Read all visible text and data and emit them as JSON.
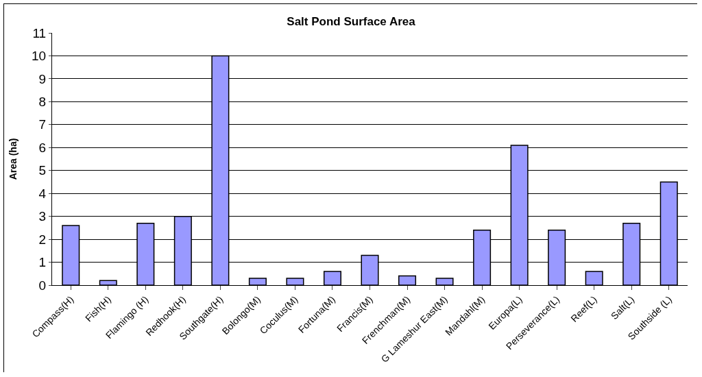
{
  "chart_data": {
    "type": "bar",
    "title": "Salt Pond Surface Area",
    "ylabel": "Area (ha)",
    "categories": [
      "Compass(H)",
      "Fish(H)",
      "Flamingo (H)",
      "Redhook(H)",
      "Southgate(H)",
      "Bolongo(M)",
      "Coculus(M)",
      "Fortuna(M)",
      "Francis(M)",
      "Frenchman(M)",
      "G Lameshur East(M)",
      "Mandahl(M)",
      "Europa(L)",
      "Perseverance(L)",
      "Reef(L)",
      "Salt(L)",
      "Southside (L)"
    ],
    "values": [
      2.6,
      0.2,
      2.7,
      3.0,
      10.0,
      0.3,
      0.3,
      0.6,
      1.3,
      0.4,
      0.3,
      2.4,
      6.1,
      2.4,
      0.6,
      2.7,
      4.5
    ],
    "color": "#9999ff",
    "ylim": [
      0,
      11
    ],
    "yticks": [
      0,
      1,
      2,
      3,
      4,
      5,
      6,
      7,
      8,
      9,
      10,
      11
    ],
    "grid": "y",
    "legend": false
  }
}
